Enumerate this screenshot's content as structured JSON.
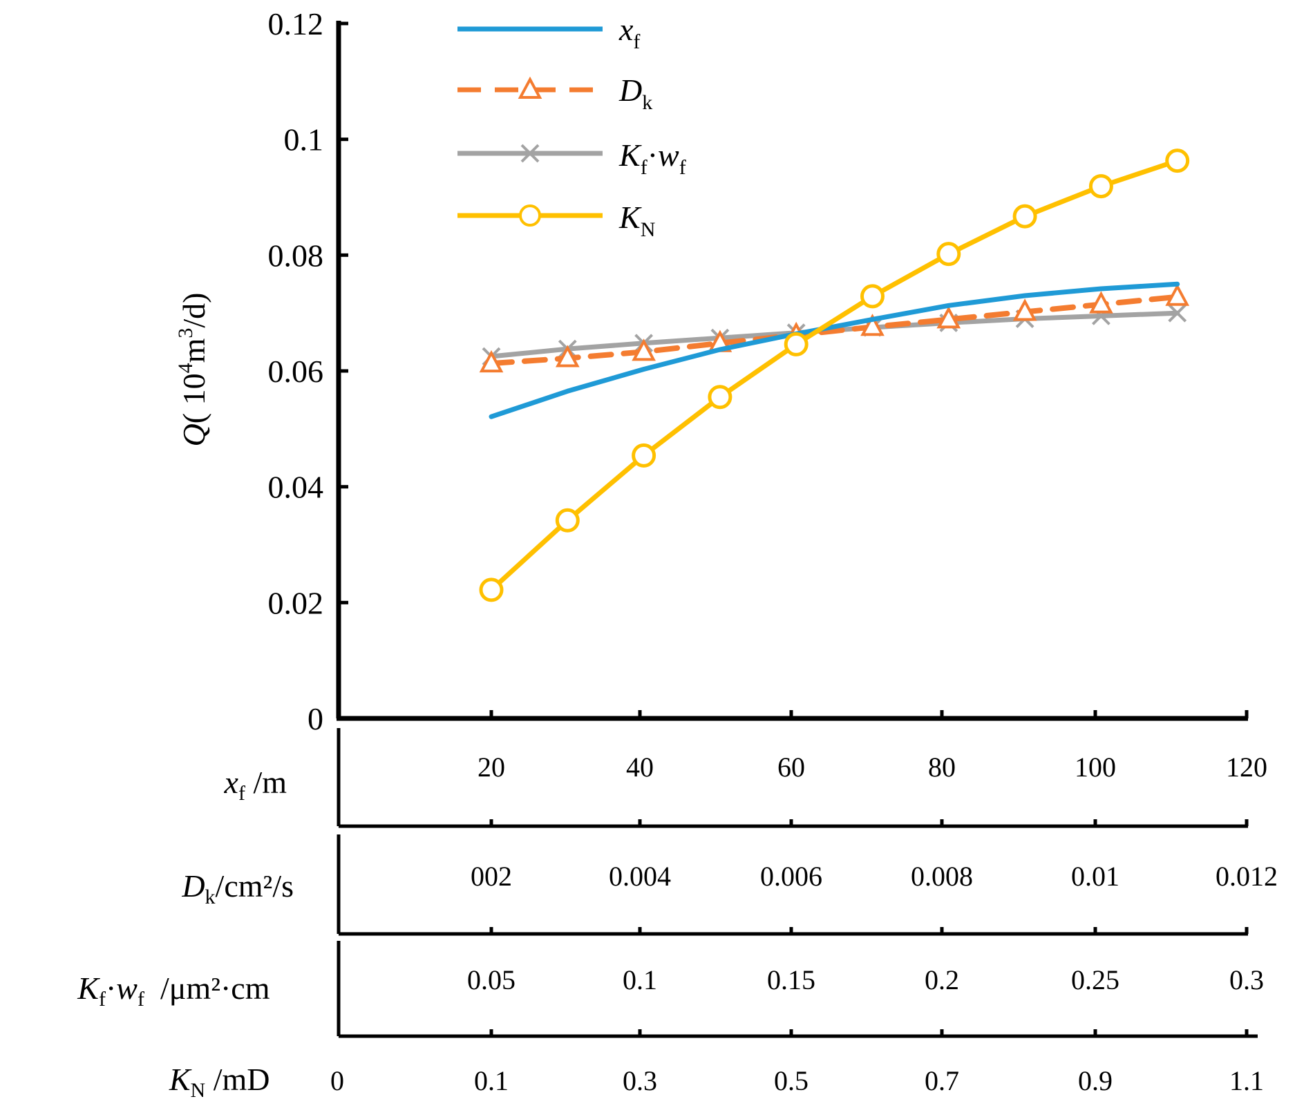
{
  "chart_data": {
    "type": "line",
    "title": "",
    "ylabel": "Q( 10⁴m³/d)",
    "ylabel_parts": {
      "var": "Q",
      "open": "( 10",
      "sup1": "4",
      "mid": "m",
      "sup2": "3",
      "close": "/d)"
    },
    "ylim": [
      0,
      0.12
    ],
    "yticks": [
      "0",
      "0.02",
      "0.04",
      "0.06",
      "0.08",
      "0.1",
      "0.12"
    ],
    "ytick_values": [
      0,
      0.02,
      0.04,
      0.06,
      0.08,
      0.1,
      0.12
    ],
    "x_index": [
      1,
      2,
      3,
      4,
      5,
      6,
      7,
      8,
      9,
      10
    ],
    "axes": [
      {
        "name": "xf",
        "label": "x_f /m",
        "label_parts": {
          "var": "x",
          "sub": "f",
          "unit": " /m"
        },
        "ticks": [
          "20",
          "40",
          "60",
          "80",
          "100",
          "120"
        ]
      },
      {
        "name": "Dk",
        "label": "D_k/cm²/s",
        "label_parts": {
          "var": "D",
          "sub": "k",
          "unit": "/cm²/s"
        },
        "ticks": [
          "002",
          "0.004",
          "0.006",
          "0.008",
          "0.01",
          "0.012"
        ]
      },
      {
        "name": "Kfwf",
        "label": "K_f·w_f /μm²·cm",
        "label_parts": {
          "var": "K",
          "sub": "f",
          "mid": "·",
          "var2": "w",
          "sub2": "f",
          "unit": "  /μm²·cm"
        },
        "ticks": [
          "0.05",
          "0.1",
          "0.15",
          "0.2",
          "0.25",
          "0.3"
        ]
      },
      {
        "name": "KN",
        "label": "K_N /mD",
        "label_parts": {
          "var": "K",
          "sub": "N",
          "unit": " /mD"
        },
        "ticks": [
          "0",
          "0.1",
          "0.3",
          "0.5",
          "0.7",
          "0.9",
          "1.1"
        ]
      }
    ],
    "series": [
      {
        "name": "x_f",
        "legend_parts": {
          "var": "x",
          "sub": "f"
        },
        "color": "#1f9ad6",
        "style": "solid",
        "marker": "none",
        "values": [
          0.0521,
          0.0565,
          0.0603,
          0.0637,
          0.0664,
          0.0689,
          0.0713,
          0.073,
          0.0742,
          0.075
        ]
      },
      {
        "name": "D_k",
        "legend_parts": {
          "var": "D",
          "sub": "k"
        },
        "color": "#f47c30",
        "style": "dashed",
        "marker": "triangle",
        "values": [
          0.0613,
          0.0622,
          0.0633,
          0.0648,
          0.0662,
          0.0676,
          0.0689,
          0.0702,
          0.0715,
          0.0728
        ]
      },
      {
        "name": "K_f·w_f",
        "legend_parts": {
          "var": "K",
          "sub": "f",
          "mid": "·",
          "var2": "w",
          "sub2": "f"
        },
        "color": "#a3a3a3",
        "style": "solid",
        "marker": "x",
        "values": [
          0.0625,
          0.0638,
          0.0648,
          0.0657,
          0.0666,
          0.0675,
          0.0683,
          0.069,
          0.0695,
          0.07
        ]
      },
      {
        "name": "K_N",
        "legend_parts": {
          "var": "K",
          "sub": "N"
        },
        "color": "#ffc000",
        "style": "solid",
        "marker": "circle",
        "values": [
          0.0222,
          0.0342,
          0.0454,
          0.0555,
          0.0646,
          0.0729,
          0.0802,
          0.0867,
          0.0919,
          0.0963
        ]
      }
    ],
    "legend_position": "top-left"
  }
}
